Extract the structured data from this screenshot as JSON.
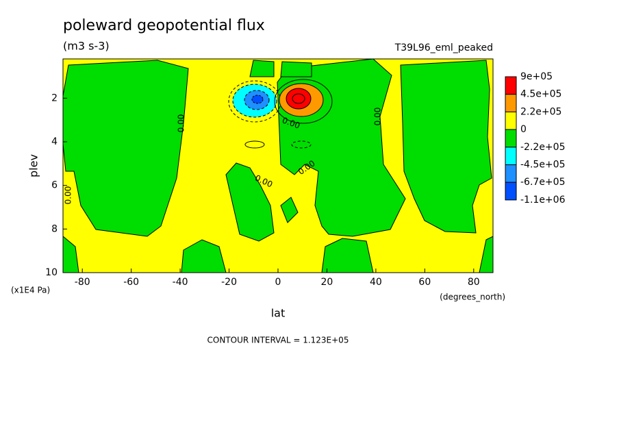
{
  "chart_data": {
    "type": "contour",
    "title": "poleward geopotential flux",
    "subtitle": "(m3 s-3)",
    "dataset": "T39L96_eml_peaked",
    "x_label": "lat",
    "x_units": "(degrees_north)",
    "y_label": "plev",
    "y_units": "(x1E4 Pa)",
    "note": "CONTOUR INTERVAL = 1.123E+05",
    "xlim": [
      -87.9,
      87.9
    ],
    "xticks": [
      -80,
      -60,
      -40,
      -20,
      0,
      20,
      40,
      60,
      80
    ],
    "ylim": [
      10,
      0.2
    ],
    "yticks": [
      2,
      4,
      6,
      8,
      10
    ],
    "levels": [
      {
        "value": 900000,
        "label": "9e+05"
      },
      {
        "value": 450000,
        "label": "4.5e+05"
      },
      {
        "value": 220000,
        "label": "2.2e+05"
      },
      0,
      {
        "value": -220000,
        "label": "-2.2e+05"
      },
      {
        "value": -450000,
        "label": "-4.5e+05"
      },
      {
        "value": -670000,
        "label": "-6.7e+05"
      },
      {
        "value": -1100000,
        "label": "-1.1e+06"
      }
    ],
    "level_colors": [
      "#ff0000",
      "#ff9900",
      "#ffff00",
      "#00dd00",
      "#00ffff",
      "#1e90ff",
      "#0050ff"
    ],
    "contour_labels": [
      {
        "value": 0,
        "label": "0.00"
      },
      {
        "value": 0,
        "label": "0.00"
      },
      {
        "value": 0,
        "label": "0.00"
      },
      {
        "value": 0,
        "label": "0.00"
      },
      {
        "value": 0,
        "label": "0.00"
      },
      {
        "value": 0,
        "label": "0.00"
      }
    ]
  }
}
